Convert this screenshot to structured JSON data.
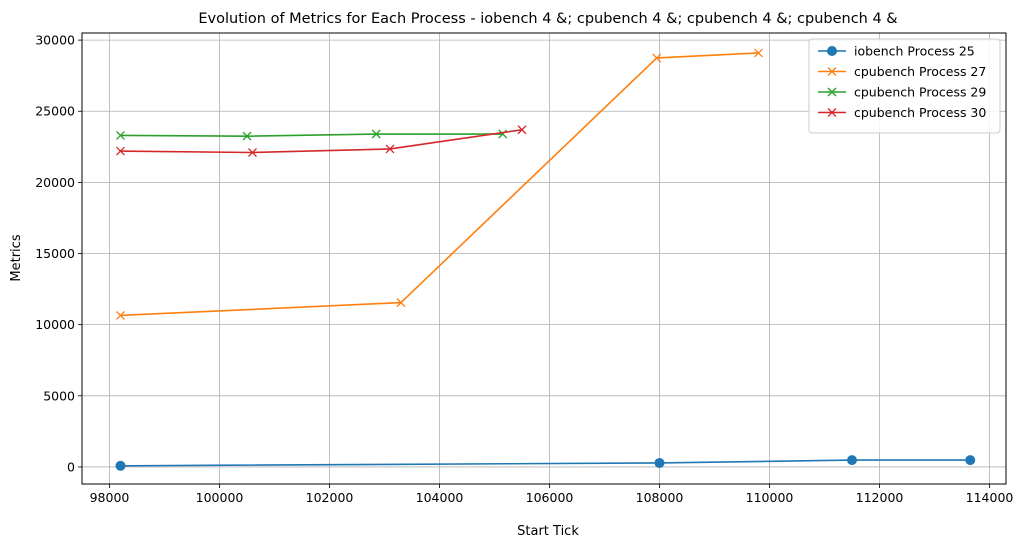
{
  "chart_data": {
    "type": "line",
    "title": "Evolution of Metrics for Each Process - iobench 4 &; cpubench 4 &; cpubench 4 &; cpubench 4 &",
    "xlabel": "Start Tick",
    "ylabel": "Metrics",
    "xlim": [
      97500,
      114300
    ],
    "ylim": [
      -1200,
      30500
    ],
    "xticks": [
      98000,
      100000,
      102000,
      104000,
      106000,
      108000,
      110000,
      112000,
      114000
    ],
    "yticks": [
      0,
      5000,
      10000,
      15000,
      20000,
      25000,
      30000
    ],
    "grid": true,
    "legend_position": "top-right",
    "series": [
      {
        "name": "iobench Process 25",
        "color": "#1f77b4",
        "marker": "circle",
        "x": [
          98200,
          108000,
          111500,
          113650
        ],
        "y": [
          80,
          280,
          480,
          480
        ]
      },
      {
        "name": "cpubench Process 27",
        "color": "#ff7f0e",
        "marker": "x",
        "x": [
          98200,
          103300,
          107950,
          109800
        ],
        "y": [
          10650,
          11550,
          28750,
          29100
        ]
      },
      {
        "name": "cpubench Process 29",
        "color": "#2ca02c",
        "marker": "x",
        "x": [
          98200,
          100500,
          102850,
          105150
        ],
        "y": [
          23300,
          23250,
          23400,
          23400
        ]
      },
      {
        "name": "cpubench Process 30",
        "color": "#d62728",
        "marker": "x",
        "x": [
          98200,
          100600,
          103100,
          105500
        ],
        "y": [
          22200,
          22100,
          22350,
          23700
        ]
      }
    ]
  }
}
